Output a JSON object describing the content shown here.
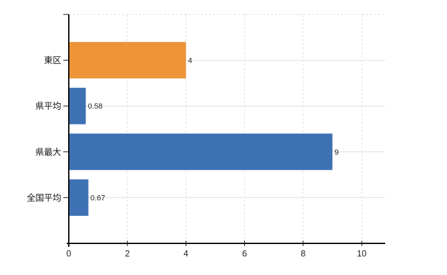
{
  "chart_data": {
    "type": "bar",
    "orientation": "horizontal",
    "title": "",
    "xlabel": "",
    "ylabel": "",
    "categories": [
      "東区",
      "県平均",
      "県最大",
      "全国平均"
    ],
    "values": [
      4,
      0.58,
      9,
      0.67
    ],
    "value_labels": [
      "4",
      "0.58",
      "9",
      "0.67"
    ],
    "bar_colors": [
      "#ed9438",
      "#3d71b4",
      "#3d71b4",
      "#3d71b4"
    ],
    "x_ticks": [
      0,
      2,
      4,
      6,
      8,
      10
    ],
    "x_tick_labels": [
      "0",
      "2",
      "4",
      "6",
      "8",
      "10"
    ],
    "xlim": [
      0,
      10.8
    ],
    "grid": {
      "horizontal": "solid",
      "vertical": "dashed",
      "top_border": "dashed"
    },
    "legend": null
  },
  "colors": {
    "background": "#ffffff",
    "bar_orange": "#ed9438",
    "bar_blue": "#3d71b4",
    "axis": "#111111",
    "tick_label": "#222222",
    "category_label": "#111111",
    "value_label": "#222222",
    "grid_horizontal": "#dbe3db",
    "grid_vertical": "#dedde0"
  }
}
